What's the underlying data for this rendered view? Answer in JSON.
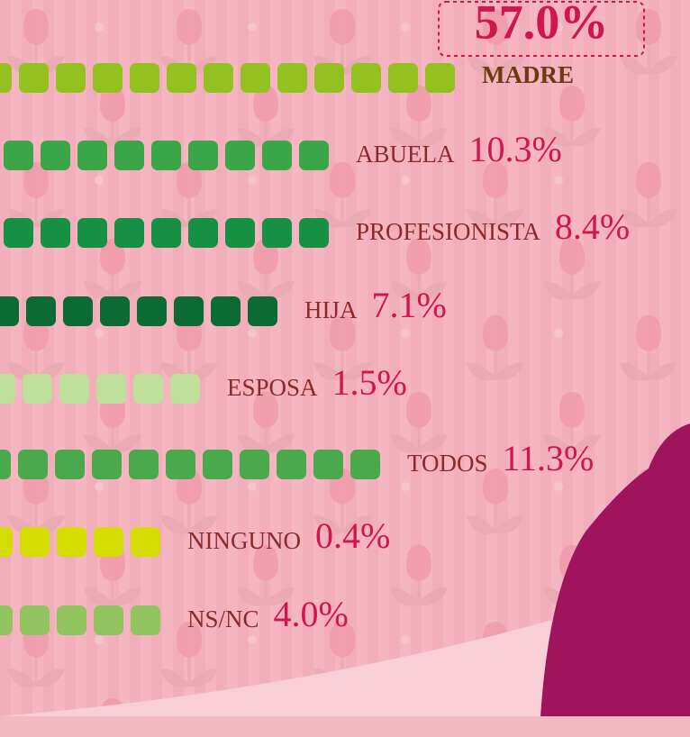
{
  "items": [
    {
      "label": "MADRE",
      "value": "57.0%",
      "color": "#93c11f"
    },
    {
      "label": "ABUELA",
      "value": "10.3%",
      "color": "#3aa648"
    },
    {
      "label": "PROFESIONISTA",
      "value": "8.4%",
      "color": "#169143"
    },
    {
      "label": "HIJA",
      "value": "7.1%",
      "color": "#0c6a35"
    },
    {
      "label": "ESPOSA",
      "value": "1.5%",
      "color": "#bfe09a"
    },
    {
      "label": "TODOS",
      "value": "11.3%",
      "color": "#4aa84d"
    },
    {
      "label": "NINGUNO",
      "value": "0.4%",
      "color": "#d4dc00"
    },
    {
      "label": "NS/NC",
      "value": "4.0%",
      "color": "#92c460"
    }
  ]
}
